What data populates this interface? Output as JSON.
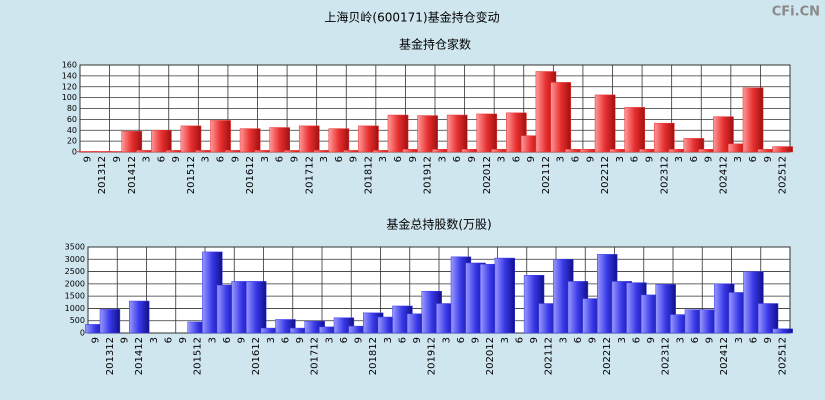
{
  "title": "上海贝岭(600171)基金持仓变动",
  "watermark": "CFi.CN",
  "chart_data": [
    {
      "type": "bar",
      "title": "基金持仓家数",
      "color": "#e83030",
      "categories": [
        "9",
        "201312",
        "9",
        "201412",
        "3",
        "6",
        "9",
        "201512",
        "3",
        "6",
        "9",
        "201612",
        "3",
        "6",
        "9",
        "201712",
        "3",
        "6",
        "9",
        "201812",
        "3",
        "6",
        "9",
        "201912",
        "3",
        "6",
        "9",
        "202012",
        "3",
        "6",
        "9",
        "202112",
        "3",
        "6",
        "9",
        "202212",
        "3",
        "6",
        "9",
        "202312",
        "3",
        "6",
        "9",
        "202412",
        "3",
        "6",
        "9",
        "202512"
      ],
      "values": [
        1,
        1,
        1,
        38,
        3,
        40,
        3,
        48,
        3,
        58,
        3,
        43,
        3,
        45,
        3,
        48,
        3,
        43,
        3,
        48,
        3,
        68,
        5,
        67,
        5,
        68,
        5,
        70,
        5,
        72,
        30,
        148,
        128,
        5,
        5,
        105,
        5,
        82,
        5,
        53,
        5,
        25,
        5,
        65,
        15,
        118,
        5,
        10
      ],
      "ylim": [
        0,
        160
      ],
      "yticks": [
        0,
        20,
        40,
        60,
        80,
        100,
        120,
        140,
        160
      ],
      "grid": true
    },
    {
      "type": "bar",
      "title": "基金总持股数(万股)",
      "color": "#3838e8",
      "categories": [
        "9",
        "201312",
        "9",
        "201412",
        "3",
        "6",
        "9",
        "201512",
        "3",
        "6",
        "9",
        "201612",
        "3",
        "6",
        "9",
        "201712",
        "3",
        "6",
        "9",
        "201812",
        "3",
        "6",
        "9",
        "201912",
        "3",
        "6",
        "9",
        "202012",
        "3",
        "6",
        "9",
        "202112",
        "3",
        "6",
        "9",
        "202212",
        "3",
        "6",
        "9",
        "202312",
        "3",
        "6",
        "9",
        "202412",
        "3",
        "6",
        "9",
        "202512"
      ],
      "values": [
        350,
        960,
        null,
        1300,
        null,
        null,
        null,
        450,
        3300,
        1950,
        2100,
        2100,
        200,
        550,
        200,
        480,
        250,
        620,
        280,
        820,
        650,
        1100,
        780,
        1700,
        1200,
        3100,
        2850,
        2800,
        3050,
        null,
        2350,
        1200,
        3000,
        2100,
        1400,
        3200,
        2100,
        2050,
        1550,
        1980,
        750,
        950,
        950,
        2000,
        1650,
        2500,
        1200,
        170
      ],
      "ylim": [
        0,
        3500
      ],
      "yticks": [
        0,
        500,
        1000,
        1500,
        2000,
        2500,
        3000,
        3500
      ],
      "grid": true
    }
  ]
}
